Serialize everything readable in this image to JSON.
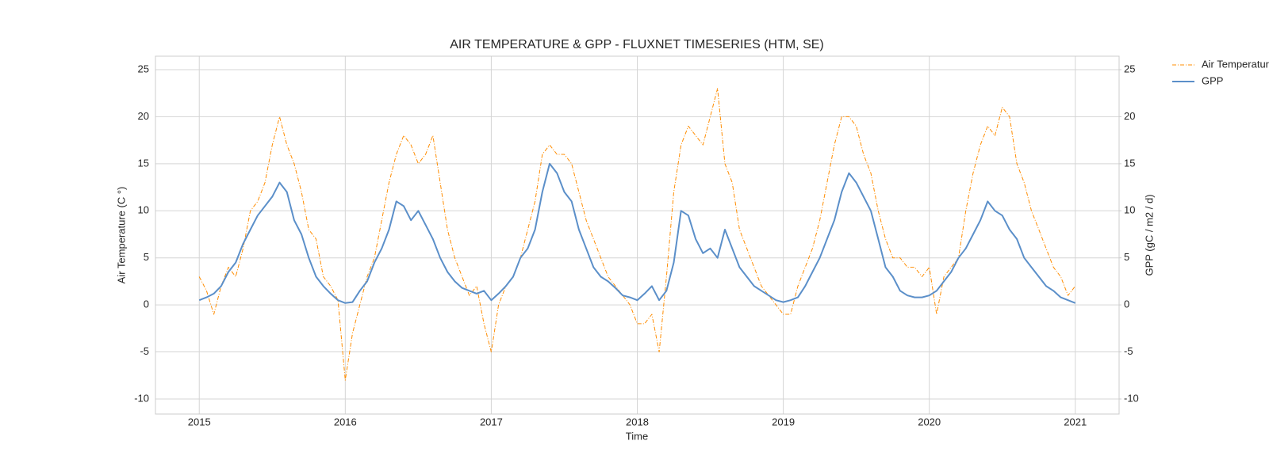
{
  "chart_data": {
    "type": "line",
    "title": "AIR TEMPERATURE & GPP - FLUXNET TIMESERIES (HTM, SE)",
    "x_label": "Time",
    "y_label": "Air Temperature (C °)",
    "y2_label": "GPP (gC / m2 / d)",
    "x": [
      2015,
      2015.05,
      2015.1,
      2015.15,
      2015.2,
      2015.25,
      2015.3,
      2015.35,
      2015.4,
      2015.45,
      2015.5,
      2015.55,
      2015.6,
      2015.65,
      2015.7,
      2015.75,
      2015.8,
      2015.85,
      2015.9,
      2015.95,
      2016,
      2016.05,
      2016.1,
      2016.15,
      2016.2,
      2016.25,
      2016.3,
      2016.35,
      2016.4,
      2016.45,
      2016.5,
      2016.55,
      2016.6,
      2016.65,
      2016.7,
      2016.75,
      2016.8,
      2016.85,
      2016.9,
      2016.95,
      2017,
      2017.05,
      2017.1,
      2017.15,
      2017.2,
      2017.25,
      2017.3,
      2017.35,
      2017.4,
      2017.45,
      2017.5,
      2017.55,
      2017.6,
      2017.65,
      2017.7,
      2017.75,
      2017.8,
      2017.85,
      2017.9,
      2017.95,
      2018,
      2018.05,
      2018.1,
      2018.15,
      2018.2,
      2018.25,
      2018.3,
      2018.35,
      2018.4,
      2018.45,
      2018.5,
      2018.55,
      2018.6,
      2018.65,
      2018.7,
      2018.75,
      2018.8,
      2018.85,
      2018.9,
      2018.95,
      2019,
      2019.05,
      2019.1,
      2019.15,
      2019.2,
      2019.25,
      2019.3,
      2019.35,
      2019.4,
      2019.45,
      2019.5,
      2019.55,
      2019.6,
      2019.65,
      2019.7,
      2019.75,
      2019.8,
      2019.85,
      2019.9,
      2019.95,
      2020,
      2020.05,
      2020.1,
      2020.15,
      2020.2,
      2020.25,
      2020.3,
      2020.35,
      2020.4,
      2020.45,
      2020.5,
      2020.55,
      2020.6,
      2020.65,
      2020.7,
      2020.75,
      2020.8,
      2020.85,
      2020.9,
      2020.95,
      2021
    ],
    "series": [
      {
        "name": "Air Temperature",
        "color": "#ff8c00",
        "dash": true,
        "axis": "y",
        "values": [
          3,
          1.5,
          -1,
          2,
          4,
          3,
          6,
          10,
          11,
          13,
          17,
          20,
          17,
          15,
          12,
          8,
          7,
          3,
          2,
          0.5,
          -8,
          -3,
          0,
          3,
          5,
          9,
          13,
          16,
          18,
          17,
          15,
          16,
          18,
          13,
          8,
          5,
          3,
          1,
          2,
          -2,
          -5,
          0,
          2,
          3,
          5,
          8,
          11,
          16,
          17,
          16,
          16,
          15,
          12,
          9,
          7,
          5,
          3,
          2,
          1,
          0,
          -2,
          -2,
          -1,
          -5,
          3,
          12,
          17,
          19,
          18,
          17,
          20,
          23,
          15,
          13,
          8,
          6,
          4,
          2,
          1,
          0,
          -1,
          -1,
          2,
          4,
          6,
          9,
          13,
          17,
          20,
          20,
          19,
          16,
          14,
          10,
          7,
          5,
          5,
          4,
          4,
          3,
          4,
          -1,
          3,
          4,
          5,
          10,
          14,
          17,
          19,
          18,
          21,
          20,
          15,
          13,
          10,
          8,
          6,
          4,
          3,
          1,
          2
        ]
      },
      {
        "name": "GPP",
        "color": "#5b8fc9",
        "dash": false,
        "axis": "y2",
        "values": [
          0.5,
          0.8,
          1.2,
          2,
          3.5,
          4.5,
          6.5,
          8,
          9.5,
          10.5,
          11.5,
          13,
          12,
          9,
          7.5,
          5,
          3,
          2,
          1.2,
          0.5,
          0.2,
          0.3,
          1.5,
          2.5,
          4.5,
          6,
          8,
          11,
          10.5,
          9,
          10,
          8.5,
          7,
          5,
          3.5,
          2.5,
          1.8,
          1.5,
          1.2,
          1.5,
          0.5,
          1.2,
          2,
          3,
          5,
          6,
          8,
          12,
          15,
          14,
          12,
          11,
          8,
          6,
          4,
          3,
          2.5,
          1.8,
          1,
          0.8,
          0.5,
          1.2,
          2,
          0.5,
          1.5,
          4.5,
          10,
          9.5,
          7,
          5.5,
          6,
          5,
          8,
          6,
          4,
          3,
          2,
          1.5,
          1,
          0.5,
          0.3,
          0.5,
          0.8,
          2,
          3.5,
          5,
          7,
          9,
          12,
          14,
          13,
          11.5,
          10,
          7,
          4,
          3,
          1.5,
          1,
          0.8,
          0.8,
          1,
          1.5,
          2.5,
          3.5,
          5,
          6,
          7.5,
          9,
          11,
          10,
          9.5,
          8,
          7,
          5,
          4,
          3,
          2,
          1.5,
          0.8,
          0.5,
          0.2
        ]
      }
    ],
    "xlim": [
      2014.7,
      2021.3
    ],
    "xticks": [
      2015,
      2016,
      2017,
      2018,
      2019,
      2020,
      2021
    ],
    "ylim": [
      -11.6,
      26.43
    ],
    "yticks": [
      -10,
      -5,
      0,
      5,
      10,
      15,
      20,
      25
    ],
    "y2lim": [
      -11.6,
      26.43
    ],
    "y2ticks": [
      -10,
      -5,
      0,
      5,
      10,
      15,
      20,
      25
    ],
    "grid": true,
    "legend": "outside-right"
  }
}
